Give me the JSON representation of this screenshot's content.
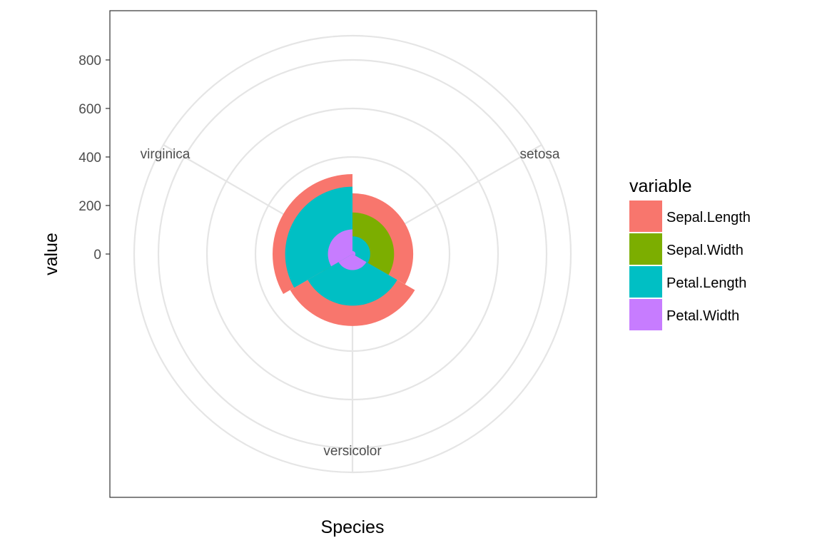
{
  "chart_data": {
    "type": "bar",
    "coord": "polar",
    "position": "identity",
    "xlabel": "Species",
    "ylabel": "value",
    "categories": [
      "setosa",
      "versicolor",
      "virginica"
    ],
    "yticks": [
      0,
      200,
      400,
      600,
      800
    ],
    "ylim": [
      0,
      900
    ],
    "grid": true,
    "legend": {
      "title": "variable",
      "placement": "right",
      "entries": [
        "Sepal.Length",
        "Sepal.Width",
        "Petal.Length",
        "Petal.Width"
      ]
    },
    "series": [
      {
        "name": "Sepal.Length",
        "color": "#F8766D",
        "values": [
          250.3,
          296.8,
          329.4
        ]
      },
      {
        "name": "Sepal.Width",
        "color": "#7CAE00",
        "values": [
          171.4,
          138.5,
          148.7
        ]
      },
      {
        "name": "Petal.Length",
        "color": "#00BFC4",
        "values": [
          73.1,
          213.0,
          277.6
        ]
      },
      {
        "name": "Petal.Width",
        "color": "#C77CFF",
        "values": [
          12.3,
          66.3,
          101.3
        ]
      }
    ]
  }
}
